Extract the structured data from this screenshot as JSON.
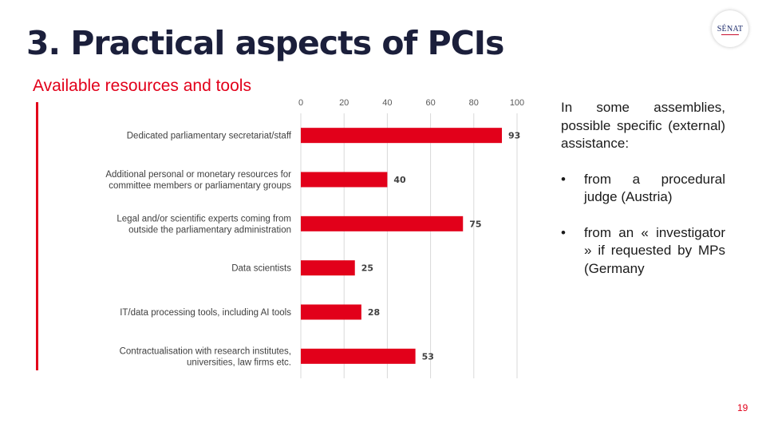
{
  "slide": {
    "title": "3. Practical aspects of PCIs",
    "subtitle": "Available resources and tools",
    "logo_text": "SÉNAT",
    "page_number": "19"
  },
  "notes": {
    "intro": "In some assemblies, possible specific (external) assistance:",
    "bullets": [
      {
        "marker": "•",
        "text": "from a procedural judge (Austria)"
      },
      {
        "marker": "•",
        "text": "from an « investigator » if requested by MPs (Germany"
      }
    ]
  },
  "colors": {
    "accent": "#e2001a",
    "title": "#1b1f3b",
    "gridline": "#d9d9d9"
  },
  "chart_data": {
    "type": "bar",
    "orientation": "horizontal",
    "categories": [
      "Dedicated parliamentary secretariat/staff",
      "Additional personal or monetary resources for committee members or parliamentary groups",
      "Legal and/or scientific experts coming from outside the parliamentary administration",
      "Data scientists",
      "IT/data processing tools, including AI tools",
      "Contractualisation with research institutes, universities, law firms etc."
    ],
    "category_lines": [
      [
        "Dedicated parliamentary secretariat/staff"
      ],
      [
        "Additional personal or monetary resources for",
        "committee members or parliamentary groups"
      ],
      [
        "Legal and/or scientific experts coming from",
        "outside the parliamentary administration"
      ],
      [
        "Data scientists"
      ],
      [
        "IT/data processing tools, including AI tools"
      ],
      [
        "Contractualisation with research institutes,",
        "universities, law firms etc."
      ]
    ],
    "values": [
      93,
      40,
      75,
      25,
      28,
      53
    ],
    "xlim": [
      0,
      100
    ],
    "xticks": [
      0,
      20,
      40,
      60,
      80,
      100
    ],
    "tick_position": "top",
    "grid": true,
    "bar_color": "#e2001a",
    "data_labels": true,
    "title": "",
    "xlabel": "",
    "ylabel": ""
  }
}
